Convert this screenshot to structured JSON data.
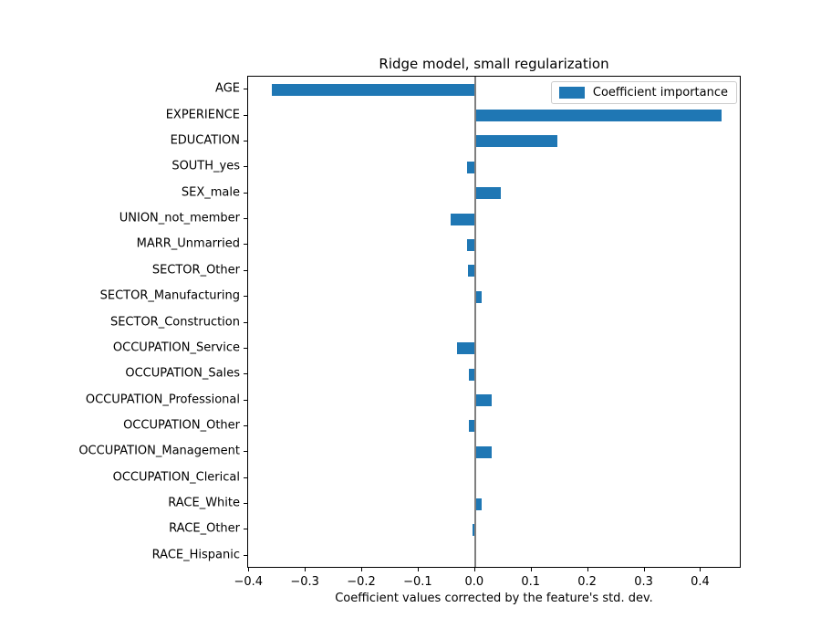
{
  "chart_data": {
    "type": "bar",
    "orientation": "horizontal",
    "title": "Ridge model, small regularization",
    "xlabel": "Coefficient values corrected by the feature's std. dev.",
    "ylabel": "",
    "legend": [
      "Coefficient importance"
    ],
    "legend_position": "upper right",
    "grid": false,
    "zero_line": true,
    "bar_color": "#1f77b4",
    "zero_line_color": "#7f7f7f",
    "xlim": [
      -0.402,
      0.472
    ],
    "xticks": [
      -0.4,
      -0.3,
      -0.2,
      -0.1,
      0.0,
      0.1,
      0.2,
      0.3,
      0.4
    ],
    "categories": [
      "AGE",
      "EXPERIENCE",
      "EDUCATION",
      "SOUTH_yes",
      "SEX_male",
      "UNION_not_member",
      "MARR_Unmarried",
      "SECTOR_Other",
      "SECTOR_Manufacturing",
      "SECTOR_Construction",
      "OCCUPATION_Service",
      "OCCUPATION_Sales",
      "OCCUPATION_Professional",
      "OCCUPATION_Other",
      "OCCUPATION_Management",
      "OCCUPATION_Clerical",
      "RACE_White",
      "RACE_Other",
      "RACE_Hispanic"
    ],
    "values": [
      -0.36,
      0.436,
      0.146,
      -0.014,
      0.045,
      -0.043,
      -0.014,
      -0.012,
      0.012,
      0.0,
      -0.032,
      -0.011,
      0.03,
      -0.011,
      0.029,
      0.0,
      0.011,
      -0.005,
      0.0
    ]
  }
}
